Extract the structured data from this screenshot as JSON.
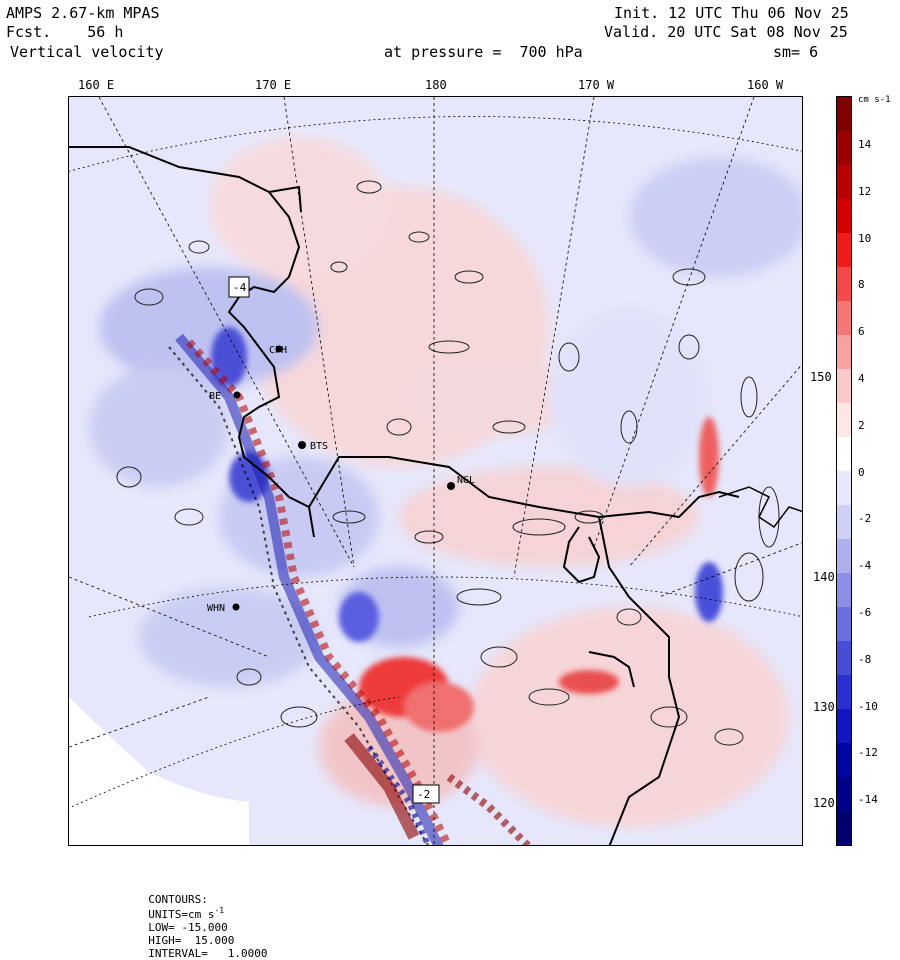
{
  "header": {
    "model": "AMPS 2.67-km MPAS",
    "fcst_label": "Fcst.",
    "fcst_value": "56 h",
    "field": "Vertical velocity",
    "init": "Init. 12 UTC Thu 06 Nov 25",
    "valid": "Valid. 20 UTC Sat 08 Nov 25",
    "pressure": "at pressure =  700 hPa",
    "smooth": "sm= 6"
  },
  "lon_labels": [
    "160 E",
    "170 E",
    "180",
    "170 W",
    "160 W"
  ],
  "lat_labels": [
    "150 W",
    "140 W",
    "130 W",
    "120 W"
  ],
  "stations": [
    "CPH",
    "BE",
    "BTS",
    "NGL",
    "WHN"
  ],
  "field_labels": [
    "-4",
    "-2"
  ],
  "colorbar": {
    "unit": "cm s-1",
    "ticks": [
      "14",
      "12",
      "10",
      "8",
      "6",
      "4",
      "2",
      "0",
      "-2",
      "-4",
      "-6",
      "-8",
      "-10",
      "-12",
      "-14"
    ],
    "colors": [
      "#7f0000",
      "#9b0000",
      "#b80000",
      "#d20000",
      "#ee1c1c",
      "#f24a4a",
      "#f47676",
      "#f7a0a0",
      "#facaca",
      "#fde6e6",
      "#ffffff",
      "#e8e8fb",
      "#cfd0f6",
      "#aeb0ee",
      "#8c8fe6",
      "#6a6ede",
      "#484dd6",
      "#2a2fcf",
      "#1116c0",
      "#0006a2",
      "#000088",
      "#00006e"
    ]
  },
  "footer": {
    "contours": "CONTOURS:",
    "units": "UNITS=cm s",
    "units_exp": "-1",
    "low": "LOW= -15.000",
    "high": "HIGH=  15.000",
    "interval": "INTERVAL=   1.0000"
  }
}
